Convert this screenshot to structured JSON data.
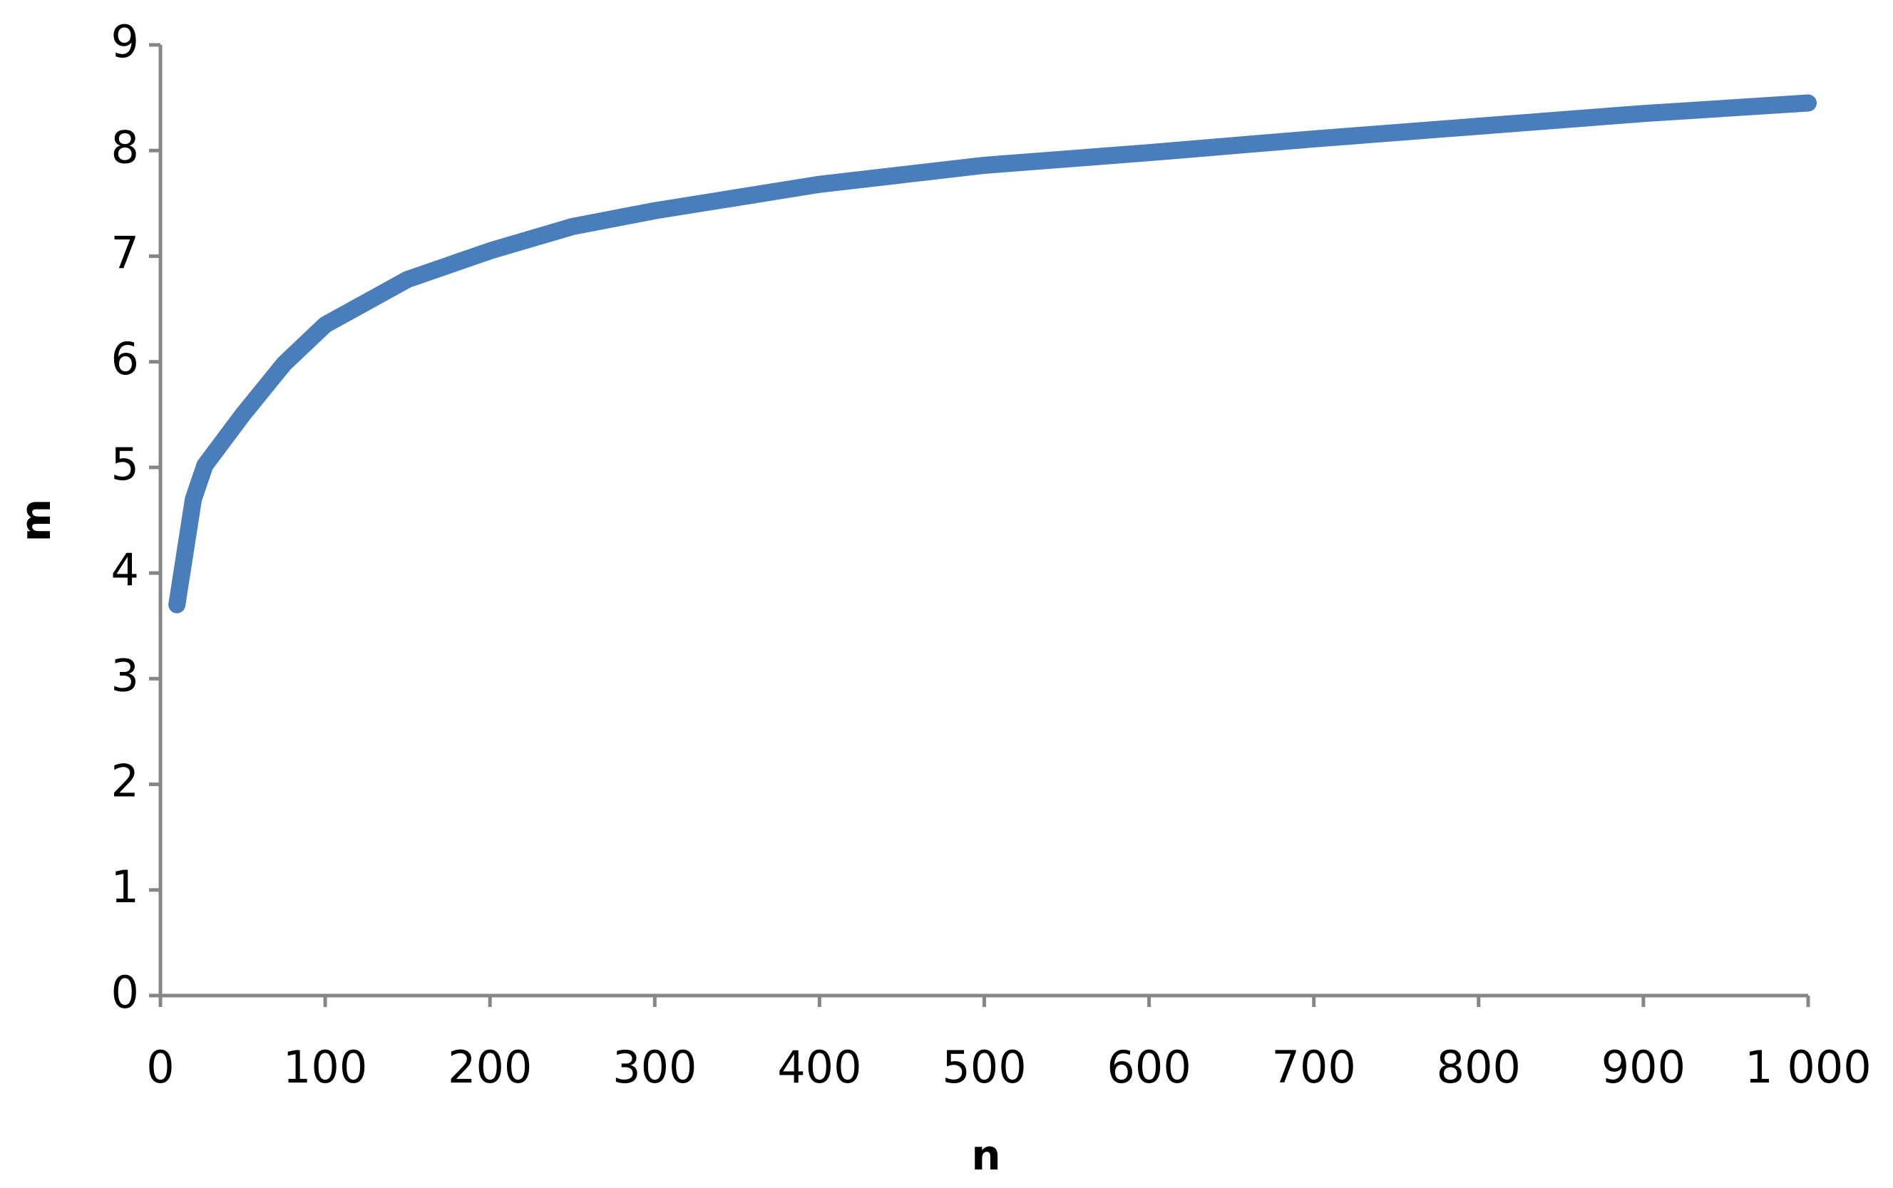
{
  "chart_data": {
    "type": "line",
    "x_label": "n",
    "y_label": "m",
    "x": [
      10,
      20,
      27,
      50,
      75,
      100,
      150,
      200,
      250,
      300,
      400,
      500,
      600,
      700,
      800,
      900,
      1000
    ],
    "series": [
      {
        "color": "#4a7ebb",
        "values": [
          3.7,
          4.7,
          5.02,
          5.5,
          5.98,
          6.35,
          6.78,
          7.05,
          7.28,
          7.43,
          7.68,
          7.86,
          7.98,
          8.11,
          8.23,
          8.35,
          8.45
        ]
      }
    ],
    "xlim": [
      0,
      1000
    ],
    "ylim": [
      0,
      9
    ],
    "xticks": [
      0,
      100,
      200,
      300,
      400,
      500,
      600,
      700,
      800,
      900,
      {
        "value": 1000,
        "label": "1 000"
      }
    ],
    "yticks": [
      0,
      1,
      2,
      3,
      4,
      5,
      6,
      7,
      8,
      9
    ],
    "grid": false
  }
}
